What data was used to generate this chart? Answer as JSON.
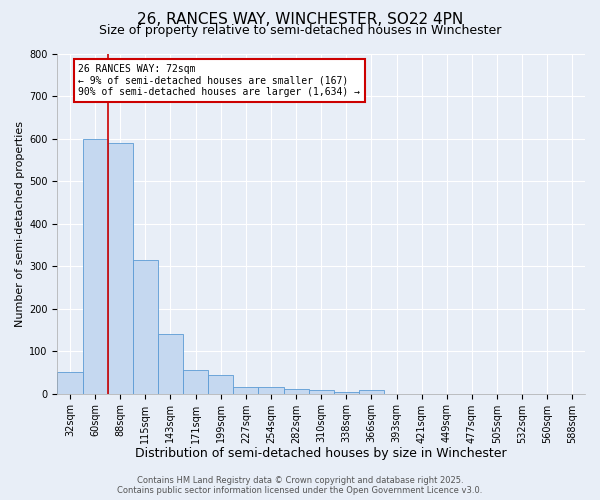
{
  "title": "26, RANCES WAY, WINCHESTER, SO22 4PN",
  "subtitle": "Size of property relative to semi-detached houses in Winchester",
  "xlabel": "Distribution of semi-detached houses by size in Winchester",
  "ylabel": "Number of semi-detached properties",
  "bin_labels": [
    "32sqm",
    "60sqm",
    "88sqm",
    "115sqm",
    "143sqm",
    "171sqm",
    "199sqm",
    "227sqm",
    "254sqm",
    "282sqm",
    "310sqm",
    "338sqm",
    "366sqm",
    "393sqm",
    "421sqm",
    "449sqm",
    "477sqm",
    "505sqm",
    "532sqm",
    "560sqm",
    "588sqm"
  ],
  "bar_values": [
    50,
    600,
    590,
    315,
    140,
    55,
    43,
    15,
    15,
    10,
    8,
    3,
    8,
    0,
    0,
    0,
    0,
    0,
    0,
    0,
    0
  ],
  "bar_color": "#c5d8f0",
  "bar_edgecolor": "#5b9bd5",
  "background_color": "#e8eef7",
  "grid_color": "#ffffff",
  "vline_x_index": 1,
  "vline_color": "#cc0000",
  "annotation_title": "26 RANCES WAY: 72sqm",
  "annotation_line2": "← 9% of semi-detached houses are smaller (167)",
  "annotation_line3": "90% of semi-detached houses are larger (1,634) →",
  "annotation_box_facecolor": "#ffffff",
  "annotation_box_edgecolor": "#cc0000",
  "ylim": [
    0,
    800
  ],
  "yticks": [
    0,
    100,
    200,
    300,
    400,
    500,
    600,
    700,
    800
  ],
  "footer_line1": "Contains HM Land Registry data © Crown copyright and database right 2025.",
  "footer_line2": "Contains public sector information licensed under the Open Government Licence v3.0.",
  "title_fontsize": 11,
  "subtitle_fontsize": 9,
  "xlabel_fontsize": 9,
  "ylabel_fontsize": 8,
  "tick_fontsize": 7,
  "annotation_fontsize": 7,
  "footer_fontsize": 6
}
